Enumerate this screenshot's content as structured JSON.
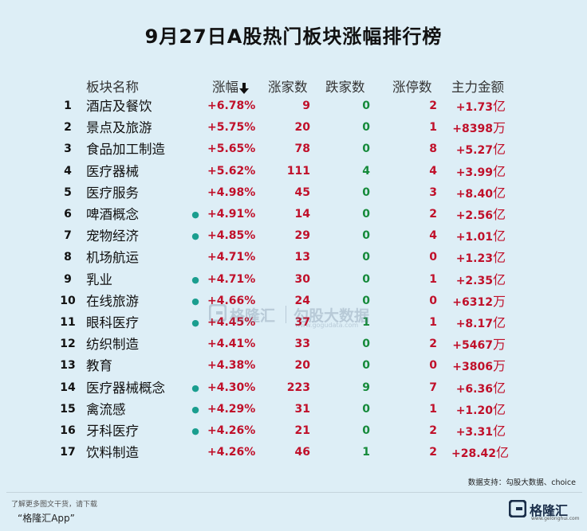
{
  "title": "9月27日A股热门板块涨幅排行榜",
  "headers": {
    "name": "板块名称",
    "pct": "涨幅",
    "up": "涨家数",
    "down": "跌家数",
    "limit": "涨停数",
    "money": "主力金额"
  },
  "colors": {
    "up": "#c0102a",
    "down": "#158a3a",
    "dot": "#1a9e8f",
    "background": "#ddeef6"
  },
  "rows": [
    {
      "rank": "1",
      "name": "酒店及餐饮",
      "dot": false,
      "pct": "+6.78%",
      "up": "9",
      "down": "0",
      "limit": "2",
      "money": "+1.73",
      "unit": "亿"
    },
    {
      "rank": "2",
      "name": "景点及旅游",
      "dot": false,
      "pct": "+5.75%",
      "up": "20",
      "down": "0",
      "limit": "1",
      "money": "+8398",
      "unit": "万"
    },
    {
      "rank": "3",
      "name": "食品加工制造",
      "dot": false,
      "pct": "+5.65%",
      "up": "78",
      "down": "0",
      "limit": "8",
      "money": "+5.27",
      "unit": "亿"
    },
    {
      "rank": "4",
      "name": "医疗器械",
      "dot": false,
      "pct": "+5.62%",
      "up": "111",
      "down": "4",
      "limit": "4",
      "money": "+3.99",
      "unit": "亿"
    },
    {
      "rank": "5",
      "name": "医疗服务",
      "dot": false,
      "pct": "+4.98%",
      "up": "45",
      "down": "0",
      "limit": "3",
      "money": "+8.40",
      "unit": "亿"
    },
    {
      "rank": "6",
      "name": "啤酒概念",
      "dot": true,
      "pct": "+4.91%",
      "up": "14",
      "down": "0",
      "limit": "2",
      "money": "+2.56",
      "unit": "亿"
    },
    {
      "rank": "7",
      "name": "宠物经济",
      "dot": true,
      "pct": "+4.85%",
      "up": "29",
      "down": "0",
      "limit": "4",
      "money": "+1.01",
      "unit": "亿"
    },
    {
      "rank": "8",
      "name": "机场航运",
      "dot": false,
      "pct": "+4.71%",
      "up": "13",
      "down": "0",
      "limit": "0",
      "money": "+1.23",
      "unit": "亿"
    },
    {
      "rank": "9",
      "name": "乳业",
      "dot": true,
      "pct": "+4.71%",
      "up": "30",
      "down": "0",
      "limit": "1",
      "money": "+2.35",
      "unit": "亿"
    },
    {
      "rank": "10",
      "name": "在线旅游",
      "dot": true,
      "pct": "+4.66%",
      "up": "24",
      "down": "0",
      "limit": "0",
      "money": "+6312",
      "unit": "万"
    },
    {
      "rank": "11",
      "name": "眼科医疗",
      "dot": true,
      "pct": "+4.45%",
      "up": "37",
      "down": "1",
      "limit": "1",
      "money": "+8.17",
      "unit": "亿"
    },
    {
      "rank": "12",
      "name": "纺织制造",
      "dot": false,
      "pct": "+4.41%",
      "up": "33",
      "down": "0",
      "limit": "2",
      "money": "+5467",
      "unit": "万"
    },
    {
      "rank": "13",
      "name": "教育",
      "dot": false,
      "pct": "+4.38%",
      "up": "20",
      "down": "0",
      "limit": "0",
      "money": "+3806",
      "unit": "万"
    },
    {
      "rank": "14",
      "name": "医疗器械概念",
      "dot": true,
      "pct": "+4.30%",
      "up": "223",
      "down": "9",
      "limit": "7",
      "money": "+6.36",
      "unit": "亿"
    },
    {
      "rank": "15",
      "name": "禽流感",
      "dot": true,
      "pct": "+4.29%",
      "up": "31",
      "down": "0",
      "limit": "1",
      "money": "+1.20",
      "unit": "亿"
    },
    {
      "rank": "16",
      "name": "牙科医疗",
      "dot": true,
      "pct": "+4.26%",
      "up": "21",
      "down": "0",
      "limit": "2",
      "money": "+3.31",
      "unit": "亿"
    },
    {
      "rank": "17",
      "name": "饮料制造",
      "dot": false,
      "pct": "+4.26%",
      "up": "46",
      "down": "1",
      "limit": "2",
      "money": "+28.42",
      "unit": "亿"
    }
  ],
  "watermark": {
    "brand": "格隆汇",
    "brand2": "勾股大数据",
    "url": "www.gogudata.com"
  },
  "source": "数据支持：勾股大数据、choice",
  "footer": {
    "hint": "了解更多图文干货，请下载",
    "app": "“格隆汇App”",
    "brand": "格隆汇",
    "brand_url": "www.gelonghui.com"
  }
}
